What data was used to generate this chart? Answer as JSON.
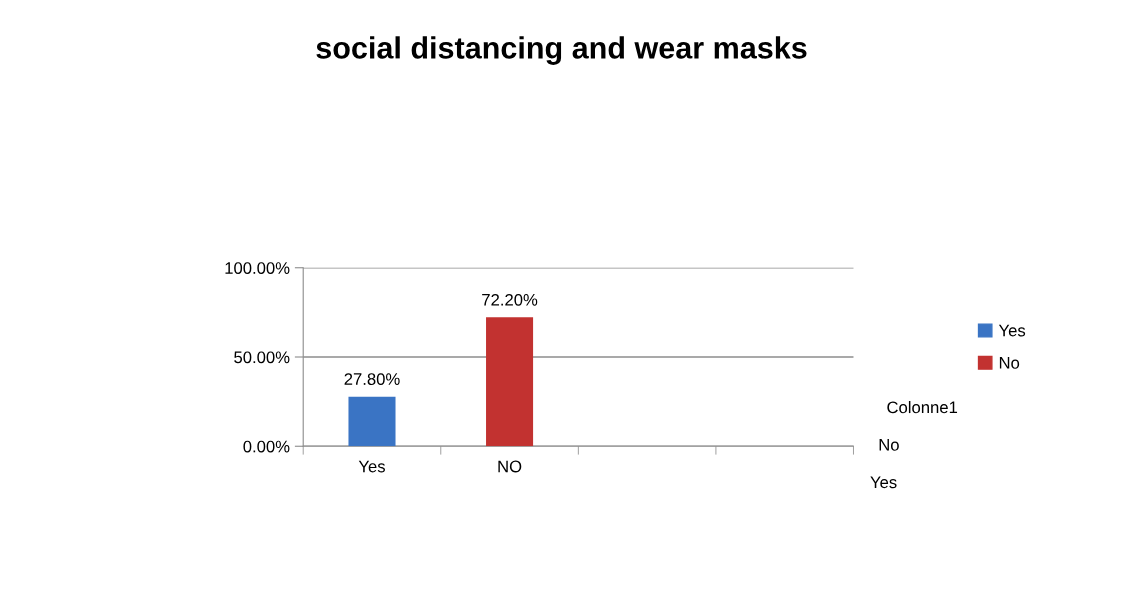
{
  "chart_data": {
    "type": "bar",
    "title": "social distancing and wear masks",
    "categories": [
      "Yes",
      "NO",
      null,
      null
    ],
    "series": [
      {
        "name": "Yes",
        "color": "#3a74c4",
        "values": [
          27.8,
          null,
          null,
          null
        ],
        "value_labels": [
          "27.80%",
          null,
          null,
          null
        ]
      },
      {
        "name": "No",
        "color": "#c23230",
        "values": [
          null,
          72.2,
          null,
          null
        ],
        "value_labels": [
          null,
          "72.20%",
          null,
          null
        ]
      }
    ],
    "ylim": [
      0,
      100
    ],
    "yticks": [
      {
        "value": 0,
        "label": "0.00%"
      },
      {
        "value": 50,
        "label": "50.00%"
      },
      {
        "value": 100,
        "label": "100.00%"
      }
    ],
    "grid": "y",
    "legend": "right",
    "annotations": [
      "Colonne1",
      "No",
      "Yes"
    ]
  }
}
